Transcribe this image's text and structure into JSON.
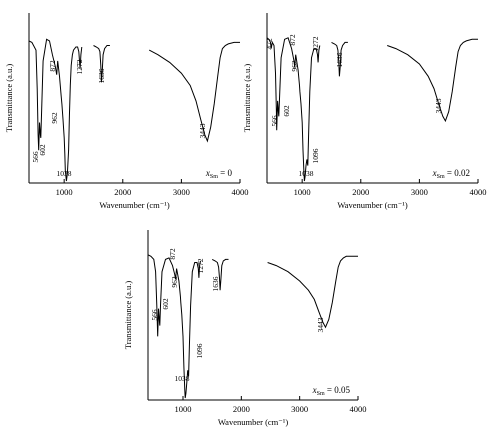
{
  "chart_data": [
    {
      "type": "line",
      "xlabel": "Wavenumber (cm⁻¹)",
      "ylabel": "Transmittance (a.u.)",
      "xlim": [
        400,
        4000
      ],
      "x_ticks": [
        "1000",
        "2000",
        "3000",
        "4000"
      ],
      "sample_label": "x",
      "sample_sub": "Sm",
      "sample_value": "= 0",
      "peaks": [
        {
          "x": 566,
          "label": "566"
        },
        {
          "x": 602,
          "label": "602"
        },
        {
          "x": 872,
          "label": "872"
        },
        {
          "x": 962,
          "label": "962"
        },
        {
          "x": 1038,
          "label": "1038"
        },
        {
          "x": 1272,
          "label": "1272"
        },
        {
          "x": 1636,
          "label": "1636"
        },
        {
          "x": 3443,
          "label": "3443"
        }
      ],
      "series": [
        {
          "x": [
            400,
            450,
            520,
            540,
            555,
            566,
            580,
            595,
            602,
            615,
            640,
            700,
            750,
            800,
            850,
            872,
            890,
            920,
            950,
            962,
            980,
            1000,
            1010,
            1020,
            1038,
            1055,
            1075,
            1090,
            1105,
            1120,
            1140,
            1160,
            1180,
            1200,
            1230,
            1250,
            1262,
            1272,
            1285,
            1300
          ],
          "y": [
            0.91,
            0.9,
            0.85,
            0.6,
            0.3,
            0.2,
            0.38,
            0.3,
            0.28,
            0.45,
            0.78,
            0.92,
            0.91,
            0.82,
            0.74,
            0.69,
            0.78,
            0.68,
            0.55,
            0.5,
            0.4,
            0.28,
            0.18,
            0.07,
            0.0,
            0.05,
            0.2,
            0.42,
            0.62,
            0.75,
            0.82,
            0.85,
            0.86,
            0.87,
            0.87,
            0.84,
            0.78,
            0.73,
            0.82,
            0.87
          ]
        },
        {
          "x": [
            1500,
            1550,
            1590,
            1610,
            1625,
            1636,
            1650,
            1665,
            1690,
            1730,
            1780
          ],
          "y": [
            0.88,
            0.87,
            0.86,
            0.84,
            0.75,
            0.64,
            0.72,
            0.82,
            0.86,
            0.88,
            0.88
          ]
        },
        {
          "x": [
            2450,
            2600,
            2800,
            3000,
            3150,
            3250,
            3330,
            3400,
            3443,
            3500,
            3560,
            3620,
            3660,
            3700,
            3750,
            3800,
            3900,
            4000
          ],
          "y": [
            0.85,
            0.82,
            0.77,
            0.7,
            0.62,
            0.52,
            0.4,
            0.3,
            0.26,
            0.35,
            0.5,
            0.68,
            0.8,
            0.86,
            0.88,
            0.89,
            0.9,
            0.9
          ]
        }
      ]
    },
    {
      "type": "line",
      "xlabel": "Wavenumber (cm⁻¹)",
      "ylabel": "Transmittance (a.u.)",
      "xlim": [
        400,
        4000
      ],
      "x_ticks": [
        "1000",
        "2000",
        "3000",
        "4000"
      ],
      "sample_label": "x",
      "sample_sub": "Sm",
      "sample_value": "= 0.02",
      "peaks": [
        {
          "x": 472,
          "label": "472"
        },
        {
          "x": 566,
          "label": "566"
        },
        {
          "x": 602,
          "label": "602"
        },
        {
          "x": 872,
          "label": "872"
        },
        {
          "x": 962,
          "label": "962"
        },
        {
          "x": 1038,
          "label": "1038"
        },
        {
          "x": 1096,
          "label": "1096"
        },
        {
          "x": 1272,
          "label": "1272"
        },
        {
          "x": 1636,
          "label": "1636"
        },
        {
          "x": 3443,
          "label": "3443"
        }
      ],
      "series": [
        {
          "x": [
            400,
            430,
            460,
            472,
            490,
            520,
            545,
            560,
            566,
            580,
            595,
            602,
            615,
            640,
            700,
            760,
            820,
            860,
            872,
            890,
            930,
            955,
            962,
            980,
            1000,
            1015,
            1030,
            1038,
            1050,
            1065,
            1080,
            1096,
            1110,
            1130,
            1160,
            1200,
            1240,
            1262,
            1272,
            1285,
            1300
          ],
          "y": [
            0.93,
            0.92,
            0.9,
            0.86,
            0.9,
            0.88,
            0.7,
            0.45,
            0.33,
            0.52,
            0.45,
            0.42,
            0.55,
            0.8,
            0.92,
            0.93,
            0.86,
            0.78,
            0.74,
            0.82,
            0.72,
            0.62,
            0.58,
            0.5,
            0.38,
            0.2,
            0.06,
            0.0,
            0.03,
            0.1,
            0.14,
            0.1,
            0.3,
            0.58,
            0.8,
            0.86,
            0.86,
            0.82,
            0.77,
            0.85,
            0.88
          ]
        },
        {
          "x": [
            1500,
            1550,
            1590,
            1610,
            1625,
            1636,
            1650,
            1665,
            1690,
            1730,
            1780
          ],
          "y": [
            0.9,
            0.89,
            0.88,
            0.85,
            0.77,
            0.68,
            0.75,
            0.85,
            0.88,
            0.9,
            0.9
          ]
        },
        {
          "x": [
            2450,
            2600,
            2800,
            3000,
            3150,
            3250,
            3330,
            3400,
            3443,
            3500,
            3560,
            3620,
            3660,
            3700,
            3750,
            3800,
            3900,
            4000
          ],
          "y": [
            0.88,
            0.86,
            0.82,
            0.76,
            0.68,
            0.6,
            0.5,
            0.42,
            0.39,
            0.45,
            0.58,
            0.74,
            0.84,
            0.88,
            0.9,
            0.91,
            0.92,
            0.92
          ]
        }
      ]
    },
    {
      "type": "line",
      "xlabel": "Wavenumber (cm⁻¹)",
      "ylabel": "Transmittance (a.u.)",
      "xlim": [
        400,
        4000
      ],
      "x_ticks": [
        "1000",
        "2000",
        "3000",
        "4000"
      ],
      "sample_label": "x",
      "sample_sub": "Sm",
      "sample_value": "= 0.05",
      "peaks": [
        {
          "x": 566,
          "label": "566"
        },
        {
          "x": 602,
          "label": "602"
        },
        {
          "x": 872,
          "label": "872"
        },
        {
          "x": 962,
          "label": "962"
        },
        {
          "x": 1038,
          "label": "1038"
        },
        {
          "x": 1096,
          "label": "1096"
        },
        {
          "x": 1272,
          "label": "1272"
        },
        {
          "x": 1636,
          "label": "1636"
        },
        {
          "x": 3443,
          "label": "3443"
        }
      ],
      "series": [
        {
          "x": [
            400,
            450,
            500,
            530,
            550,
            566,
            580,
            595,
            602,
            615,
            640,
            700,
            760,
            820,
            860,
            872,
            890,
            930,
            955,
            962,
            980,
            1000,
            1015,
            1030,
            1038,
            1050,
            1065,
            1080,
            1096,
            1110,
            1130,
            1160,
            1200,
            1240,
            1262,
            1272,
            1285,
            1300
          ],
          "y": [
            0.93,
            0.92,
            0.9,
            0.82,
            0.6,
            0.4,
            0.58,
            0.5,
            0.47,
            0.6,
            0.82,
            0.9,
            0.91,
            0.86,
            0.8,
            0.77,
            0.84,
            0.76,
            0.66,
            0.62,
            0.54,
            0.4,
            0.2,
            0.05,
            0.0,
            0.03,
            0.1,
            0.18,
            0.14,
            0.34,
            0.6,
            0.82,
            0.88,
            0.88,
            0.84,
            0.78,
            0.86,
            0.89
          ]
        },
        {
          "x": [
            1500,
            1550,
            1590,
            1610,
            1625,
            1636,
            1650,
            1665,
            1690,
            1730,
            1780
          ],
          "y": [
            0.9,
            0.89,
            0.88,
            0.85,
            0.78,
            0.7,
            0.77,
            0.86,
            0.89,
            0.9,
            0.9
          ]
        },
        {
          "x": [
            2450,
            2600,
            2800,
            3000,
            3150,
            3250,
            3330,
            3400,
            3443,
            3500,
            3560,
            3620,
            3660,
            3700,
            3750,
            3800,
            3900,
            4000
          ],
          "y": [
            0.88,
            0.86,
            0.82,
            0.76,
            0.7,
            0.64,
            0.56,
            0.49,
            0.46,
            0.51,
            0.62,
            0.76,
            0.85,
            0.89,
            0.91,
            0.92,
            0.92,
            0.92
          ]
        }
      ]
    }
  ]
}
